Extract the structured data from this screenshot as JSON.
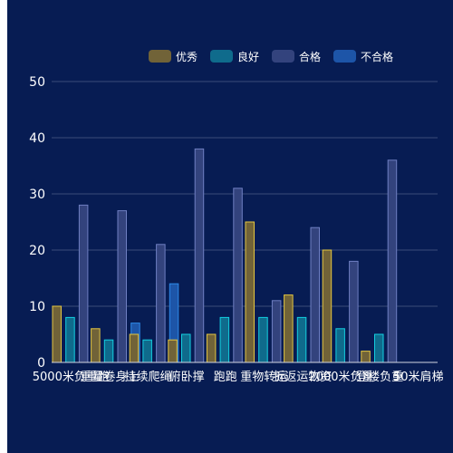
{
  "chart_data": {
    "type": "bar",
    "categories": [
      "5000米负重跑",
      "重量卷身上",
      "持续爬绳",
      "俯卧撑",
      "跑跑",
      "重物转运",
      "折返运物资",
      "2000米负重",
      "登楼负重",
      "50米肩梯"
    ],
    "series": [
      {
        "name": "优秀",
        "color": "#716338",
        "stroke": "#e4c640",
        "values": [
          10,
          6,
          5,
          4,
          5,
          25,
          12,
          20,
          2,
          0
        ]
      },
      {
        "name": "良好",
        "color": "#0f6b8c",
        "stroke": "#13cfe0",
        "values": [
          8,
          4,
          4,
          5,
          8,
          8,
          8,
          6,
          5,
          0
        ]
      },
      {
        "name": "合格",
        "color": "#33437d",
        "stroke": "#6f7fc2",
        "values": [
          28,
          27,
          21,
          38,
          31,
          11,
          24,
          18,
          36,
          0
        ]
      },
      {
        "name": "不合格",
        "color": "#1d55a8",
        "stroke": "#2d89e8",
        "values": [
          0,
          7,
          14,
          0,
          0,
          0,
          0,
          0,
          0,
          0
        ]
      }
    ],
    "ylim": [
      0,
      50
    ],
    "yticks": [
      0,
      10,
      20,
      30,
      40,
      50
    ],
    "grid": true,
    "legend_position": "top-right",
    "xlabel": "",
    "ylabel": ""
  }
}
